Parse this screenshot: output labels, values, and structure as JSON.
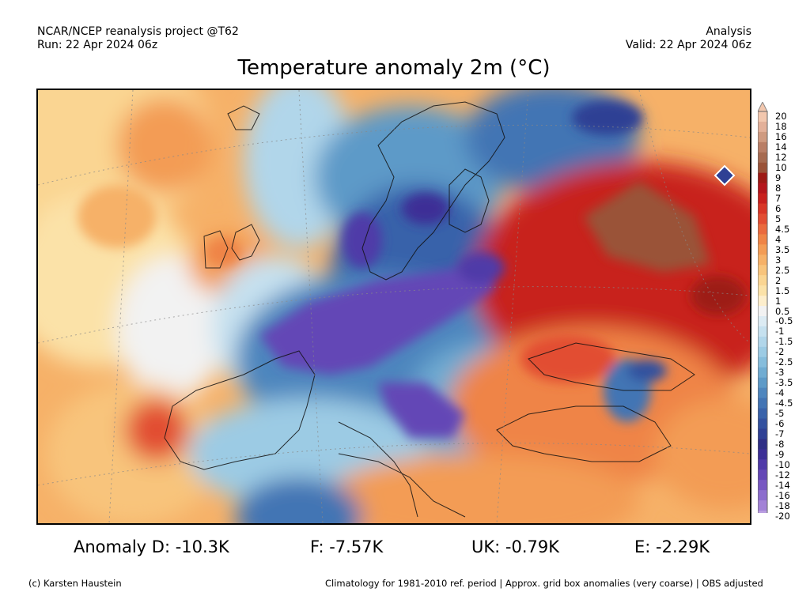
{
  "header": {
    "source": "NCAR/NCEP reanalysis project @T62",
    "run": "Run: 22 Apr 2024 06z",
    "mode": "Analysis",
    "valid": "Valid: 22 Apr 2024 06z"
  },
  "title": "Temperature anomaly 2m (°C)",
  "legend": {
    "ticks": [
      "20",
      "18",
      "16",
      "14",
      "12",
      "10",
      "9",
      "8",
      "7",
      "6",
      "5",
      "4.5",
      "4",
      "3.5",
      "3",
      "2.5",
      "2",
      "1.5",
      "1",
      "0.5",
      "-0.5",
      "-1",
      "-1.5",
      "-2",
      "-2.5",
      "-3",
      "-3.5",
      "-4",
      "-4.5",
      "-5",
      "-6",
      "-7",
      "-8",
      "-9",
      "-10",
      "-12",
      "-14",
      "-16",
      "-18",
      "-20"
    ],
    "colors": [
      "#f2c7ae",
      "#e3b099",
      "#cf9a80",
      "#b97e66",
      "#a66a50",
      "#9a5238",
      "#9d1a15",
      "#b4161c",
      "#c8201e",
      "#d83627",
      "#e24d33",
      "#ea6a3e",
      "#ef8446",
      "#f39c55",
      "#f6b168",
      "#f8c47c",
      "#fad592",
      "#fbe2a8",
      "#fdeecc",
      "#f2f2f2",
      "#dcebf3",
      "#c6e1ef",
      "#b1d6ea",
      "#9ccbe4",
      "#86bddc",
      "#70acd2",
      "#5d9ac8",
      "#4e86be",
      "#4274b4",
      "#3962aa",
      "#33519f",
      "#2f4094",
      "#2f2f86",
      "#3c2f96",
      "#4f3aa8",
      "#6447b6",
      "#7858c2",
      "#8c6dcd",
      "#a282d6",
      "#b99de1"
    ],
    "unit": "°C"
  },
  "stats": {
    "d": "Anomaly D: -10.3K",
    "f": "F: -7.57K",
    "uk": "UK: -0.79K",
    "e": "E: -2.29K"
  },
  "footer": {
    "credit": "(c) Karsten Haustein",
    "note": "Climatology for 1981-2010 ref. period | Approx. grid box anomalies (very coarse) | OBS adjusted"
  }
}
